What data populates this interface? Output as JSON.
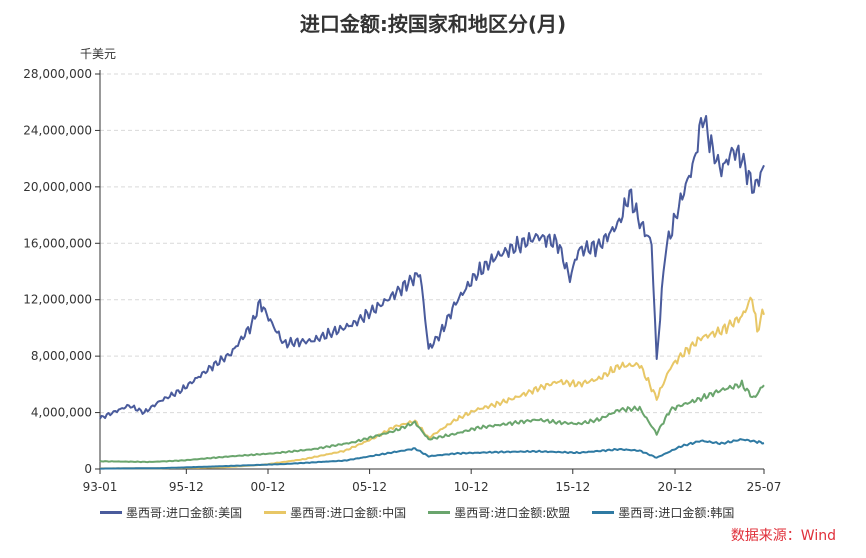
{
  "chart_data": {
    "type": "line",
    "title": "进口金额:按国家和地区分(月)",
    "y_unit": "千美元",
    "ylim": [
      0,
      28000000
    ],
    "y_ticks": [
      "0",
      "4,000,000",
      "8,000,000",
      "12,000,000",
      "16,000,000",
      "20,000,000",
      "24,000,000",
      "28,000,000"
    ],
    "x_tick_labels": [
      "93-01",
      "95-12",
      "00-12",
      "05-12",
      "10-12",
      "15-12",
      "20-12",
      "25-07"
    ],
    "x_range": [
      "1993-01",
      "2025-07"
    ],
    "series": [
      {
        "name": "墨西哥:进口金额:美国",
        "color": "#4a5b9c",
        "points": [
          [
            "1993-01",
            3600000
          ],
          [
            "1994-06",
            4500000
          ],
          [
            "1995-03",
            4000000
          ],
          [
            "1995-12",
            4800000
          ],
          [
            "1997-01",
            5600000
          ],
          [
            "1998-06",
            7200000
          ],
          [
            "1999-06",
            8200000
          ],
          [
            "2000-06",
            10200000
          ],
          [
            "2000-11",
            11800000
          ],
          [
            "2001-06",
            10300000
          ],
          [
            "2002-01",
            8900000
          ],
          [
            "2003-06",
            9100000
          ],
          [
            "2005-06",
            10300000
          ],
          [
            "2006-06",
            11300000
          ],
          [
            "2007-06",
            12400000
          ],
          [
            "2008-09",
            13900000
          ],
          [
            "2009-02",
            8500000
          ],
          [
            "2009-09",
            9600000
          ],
          [
            "2010-06",
            11800000
          ],
          [
            "2011-06",
            13800000
          ],
          [
            "2012-06",
            15100000
          ],
          [
            "2013-06",
            15800000
          ],
          [
            "2014-06",
            16500000
          ],
          [
            "2015-06",
            16000000
          ],
          [
            "2016-01",
            13500000
          ],
          [
            "2016-06",
            15500000
          ],
          [
            "2017-06",
            15800000
          ],
          [
            "2018-06",
            17500000
          ],
          [
            "2018-12",
            19500000
          ],
          [
            "2019-06",
            17500000
          ],
          [
            "2020-01",
            16000000
          ],
          [
            "2020-04",
            7700000
          ],
          [
            "2020-09",
            15500000
          ],
          [
            "2021-06",
            19000000
          ],
          [
            "2022-02",
            21800000
          ],
          [
            "2022-07",
            25100000
          ],
          [
            "2023-01",
            22500000
          ],
          [
            "2023-06",
            21200000
          ],
          [
            "2024-01",
            22600000
          ],
          [
            "2024-06",
            22000000
          ],
          [
            "2025-01",
            19800000
          ],
          [
            "2025-07",
            21400000
          ]
        ]
      },
      {
        "name": "墨西哥:进口金额:中国",
        "color": "#e8c766",
        "points": [
          [
            "1993-01",
            40000
          ],
          [
            "1996-01",
            60000
          ],
          [
            "1999-01",
            120000
          ],
          [
            "2001-01",
            300000
          ],
          [
            "2003-01",
            700000
          ],
          [
            "2005-01",
            1300000
          ],
          [
            "2006-06",
            2200000
          ],
          [
            "2007-06",
            3000000
          ],
          [
            "2008-06",
            3400000
          ],
          [
            "2009-02",
            2200000
          ],
          [
            "2010-06",
            3500000
          ],
          [
            "2011-06",
            4200000
          ],
          [
            "2012-06",
            4600000
          ],
          [
            "2013-06",
            5100000
          ],
          [
            "2014-06",
            5700000
          ],
          [
            "2015-06",
            6200000
          ],
          [
            "2016-06",
            6000000
          ],
          [
            "2017-06",
            6400000
          ],
          [
            "2018-06",
            7300000
          ],
          [
            "2019-06",
            7400000
          ],
          [
            "2020-04",
            5000000
          ],
          [
            "2020-12",
            7200000
          ],
          [
            "2021-06",
            8000000
          ],
          [
            "2022-06",
            9300000
          ],
          [
            "2023-06",
            9800000
          ],
          [
            "2024-06",
            10800000
          ],
          [
            "2024-12",
            12200000
          ],
          [
            "2025-03",
            9800000
          ],
          [
            "2025-07",
            11300000
          ]
        ]
      },
      {
        "name": "墨西哥:进口金额:欧盟",
        "color": "#6aa56d",
        "points": [
          [
            "1993-01",
            550000
          ],
          [
            "1995-06",
            500000
          ],
          [
            "1997-01",
            600000
          ],
          [
            "1999-06",
            900000
          ],
          [
            "2001-06",
            1100000
          ],
          [
            "2003-06",
            1400000
          ],
          [
            "2005-06",
            1900000
          ],
          [
            "2007-06",
            2700000
          ],
          [
            "2008-06",
            3300000
          ],
          [
            "2009-02",
            2100000
          ],
          [
            "2010-06",
            2500000
          ],
          [
            "2011-06",
            2900000
          ],
          [
            "2012-06",
            3100000
          ],
          [
            "2013-06",
            3300000
          ],
          [
            "2014-06",
            3500000
          ],
          [
            "2015-06",
            3300000
          ],
          [
            "2016-06",
            3200000
          ],
          [
            "2017-06",
            3500000
          ],
          [
            "2018-06",
            4200000
          ],
          [
            "2019-06",
            4300000
          ],
          [
            "2020-04",
            2500000
          ],
          [
            "2020-12",
            4200000
          ],
          [
            "2021-06",
            4500000
          ],
          [
            "2022-06",
            5000000
          ],
          [
            "2023-06",
            5600000
          ],
          [
            "2024-06",
            6000000
          ],
          [
            "2025-01",
            5000000
          ],
          [
            "2025-07",
            6000000
          ]
        ]
      },
      {
        "name": "墨西哥:进口金额:韩国",
        "color": "#2f7aa3",
        "points": [
          [
            "1993-01",
            30000
          ],
          [
            "1996-01",
            60000
          ],
          [
            "1999-01",
            200000
          ],
          [
            "2002-01",
            350000
          ],
          [
            "2005-01",
            600000
          ],
          [
            "2007-06",
            1200000
          ],
          [
            "2008-06",
            1450000
          ],
          [
            "2009-02",
            900000
          ],
          [
            "2010-06",
            1100000
          ],
          [
            "2012-06",
            1200000
          ],
          [
            "2014-06",
            1250000
          ],
          [
            "2016-06",
            1150000
          ],
          [
            "2018-06",
            1400000
          ],
          [
            "2019-06",
            1300000
          ],
          [
            "2020-04",
            800000
          ],
          [
            "2021-06",
            1600000
          ],
          [
            "2022-06",
            2000000
          ],
          [
            "2023-06",
            1800000
          ],
          [
            "2024-06",
            2100000
          ],
          [
            "2025-07",
            1850000
          ]
        ]
      }
    ],
    "legend_position": "bottom",
    "grid": true
  },
  "source_text": "数据来源：Wind"
}
